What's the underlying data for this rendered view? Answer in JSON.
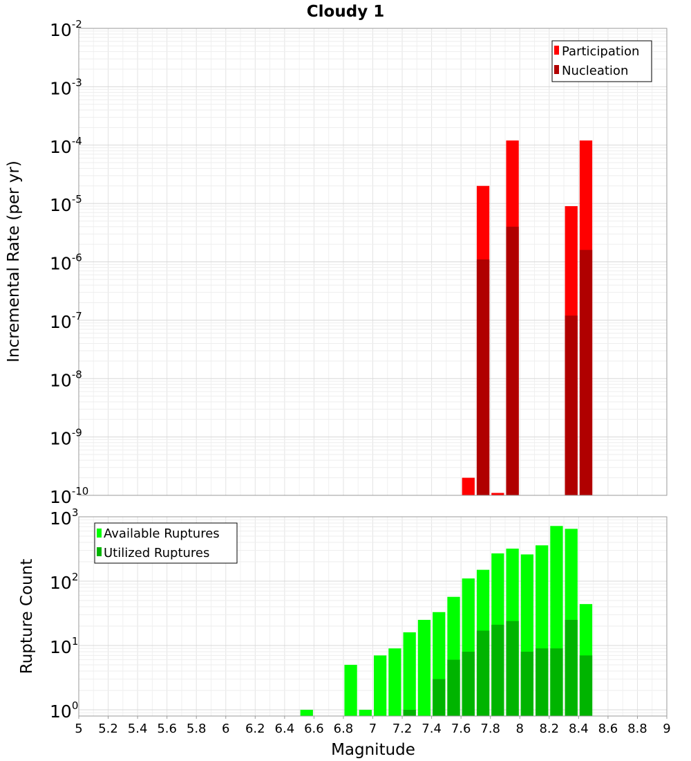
{
  "chart_data": [
    {
      "type": "bar",
      "title": "Cloudy 1",
      "ylabel": "Incremental Rate (per yr)",
      "yscale": "log",
      "ylim": [
        1e-10,
        0.01
      ],
      "xlim": [
        5,
        9
      ],
      "grid": true,
      "legend_position": "top-right",
      "bin_width": 0.1,
      "series": [
        {
          "name": "Participation",
          "color": "#ff0000",
          "x": [
            7.65,
            7.75,
            7.85,
            7.95,
            8.35,
            8.45
          ],
          "values": [
            2e-10,
            2e-05,
            1.1e-10,
            0.00012,
            9e-06,
            0.00012
          ]
        },
        {
          "name": "Nucleation",
          "color": "#b00000",
          "x": [
            7.75,
            7.95,
            8.35,
            8.45
          ],
          "values": [
            1.1e-06,
            4e-06,
            1.2e-07,
            1.6e-06
          ]
        }
      ]
    },
    {
      "type": "bar",
      "xlabel": "Magnitude",
      "ylabel": "Rupture Count",
      "yscale": "log",
      "ylim": [
        0.8,
        1000
      ],
      "xlim": [
        5,
        9
      ],
      "grid": true,
      "legend_position": "top-left",
      "bin_width": 0.1,
      "series": [
        {
          "name": "Available Ruptures",
          "color": "#00ff00",
          "x": [
            6.55,
            6.85,
            6.95,
            7.05,
            7.15,
            7.25,
            7.35,
            7.45,
            7.55,
            7.65,
            7.75,
            7.85,
            7.95,
            8.05,
            8.15,
            8.25,
            8.35,
            8.45
          ],
          "values": [
            1,
            5,
            1,
            7,
            9,
            16,
            25,
            33,
            57,
            110,
            150,
            270,
            320,
            260,
            360,
            720,
            650,
            44
          ]
        },
        {
          "name": "Utilized Ruptures",
          "color": "#00b400",
          "x": [
            7.25,
            7.45,
            7.55,
            7.65,
            7.75,
            7.85,
            7.95,
            8.05,
            8.15,
            8.25,
            8.35,
            8.45
          ],
          "values": [
            1,
            3,
            6,
            8,
            17,
            21,
            24,
            8,
            9,
            9,
            25,
            7
          ]
        }
      ],
      "x_ticks": [
        "5",
        "5.2",
        "5.4",
        "5.6",
        "5.8",
        "6",
        "6.2",
        "6.4",
        "6.6",
        "6.8",
        "7",
        "7.2",
        "7.4",
        "7.6",
        "7.8",
        "8",
        "8.2",
        "8.4",
        "8.6",
        "8.8",
        "9"
      ]
    }
  ]
}
